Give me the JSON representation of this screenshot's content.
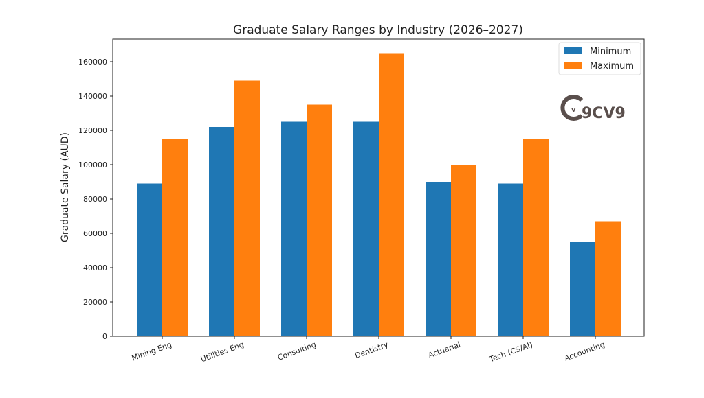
{
  "chart_data": {
    "type": "bar",
    "title": "Graduate Salary Ranges by Industry (2026–2027)",
    "xlabel": "",
    "ylabel": "Graduate Salary (AUD)",
    "ylim": [
      0,
      173200
    ],
    "yticks": [
      0,
      20000,
      40000,
      60000,
      80000,
      100000,
      120000,
      140000,
      160000
    ],
    "categories": [
      "Mining Eng",
      "Utilities Eng",
      "Consulting",
      "Dentistry",
      "Actuarial",
      "Tech (CS/AI)",
      "Accounting"
    ],
    "series": [
      {
        "name": "Minimum",
        "color": "#1f77b4",
        "values": [
          89000,
          122000,
          125000,
          125000,
          90000,
          89000,
          55000
        ]
      },
      {
        "name": "Maximum",
        "color": "#ff7f0e",
        "values": [
          115000,
          149000,
          135000,
          165000,
          100000,
          115000,
          67000
        ]
      }
    ],
    "legend": "top-right",
    "grid": false,
    "watermark": "9CV9"
  }
}
